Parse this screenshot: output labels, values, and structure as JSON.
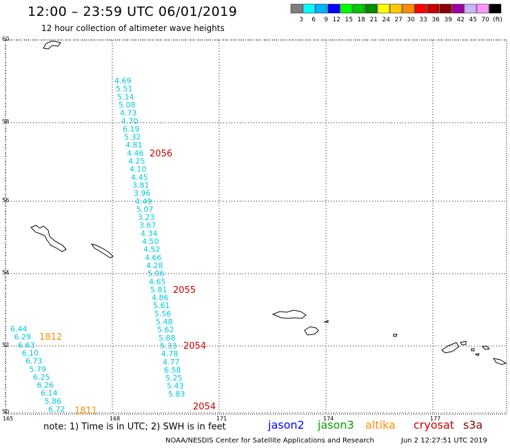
{
  "header": {
    "title": "12:00 – 23:59 UTC 06/01/2019",
    "subtitle": "12 hour collection of altimeter wave heights"
  },
  "legend": {
    "colors": [
      "#7f7f7f",
      "#00ffff",
      "#00b4ff",
      "#0000ff",
      "#00ff00",
      "#00c800",
      "#008c00",
      "#ffff00",
      "#ffc800",
      "#ff8c00",
      "#ff0000",
      "#c80000",
      "#8c0000",
      "#a000a0",
      "#c8b4ff",
      "#ff96ff",
      "#000000"
    ],
    "labels": [
      "3",
      "6",
      "9",
      "12",
      "15",
      "18",
      "21",
      "24",
      "27",
      "30",
      "33",
      "36",
      "39",
      "42",
      "45",
      "70",
      "(ft)"
    ]
  },
  "axes": {
    "lat_labels": [
      "60",
      "58",
      "56",
      "54",
      "52",
      "50"
    ],
    "lon_labels": [
      "165",
      "168",
      "171",
      "174",
      "177"
    ]
  },
  "track_values": [
    "4.69",
    "5.51",
    "5.14",
    "5.08",
    "4.73",
    "4.70",
    "6.19",
    "5.32",
    "4.81",
    "4.46",
    "4.25",
    "4.10",
    "4.45",
    "3.81",
    "3.96",
    "4.49",
    "5.07",
    "3.23",
    "3.67",
    "4.34",
    "4.50",
    "4.52",
    "4.66",
    "4.28",
    "5.06",
    "4.65",
    "5.81",
    "4.86",
    "5.61",
    "5.56",
    "5.48",
    "5.62",
    "5.88",
    "5.33",
    "4.78",
    "4.77",
    "6.58",
    "5.25",
    "5.43",
    "5.83"
  ],
  "times_main": [
    "2056",
    "2055",
    "2054",
    "2054"
  ],
  "left_values": [
    "6.44",
    "6.29",
    "6.63",
    "6.10",
    "6.73",
    "5.79",
    "6.25",
    "6.26",
    "6.14",
    "5.86",
    "6.72"
  ],
  "times_left": [
    "1812",
    "1811"
  ],
  "colors": {
    "cyan": "#00c8dc",
    "red": "#c80000",
    "orange": "#ff8c00",
    "jason2": "#0000ff",
    "jason3": "#00a000",
    "altika": "#ff8c00",
    "cryosat": "#c80000",
    "s3a": "#8c0000"
  },
  "footer": {
    "note": "note: 1) Time is in UTC; 2) SWH is in feet",
    "satellites": [
      "jason2",
      "jason3",
      "altika",
      "cryosat",
      "s3a"
    ],
    "credit": "NOAA/NESDIS Center for Satellite Applications and Research",
    "timestamp": "Jun  2 12:27:51 UTC 2019"
  }
}
